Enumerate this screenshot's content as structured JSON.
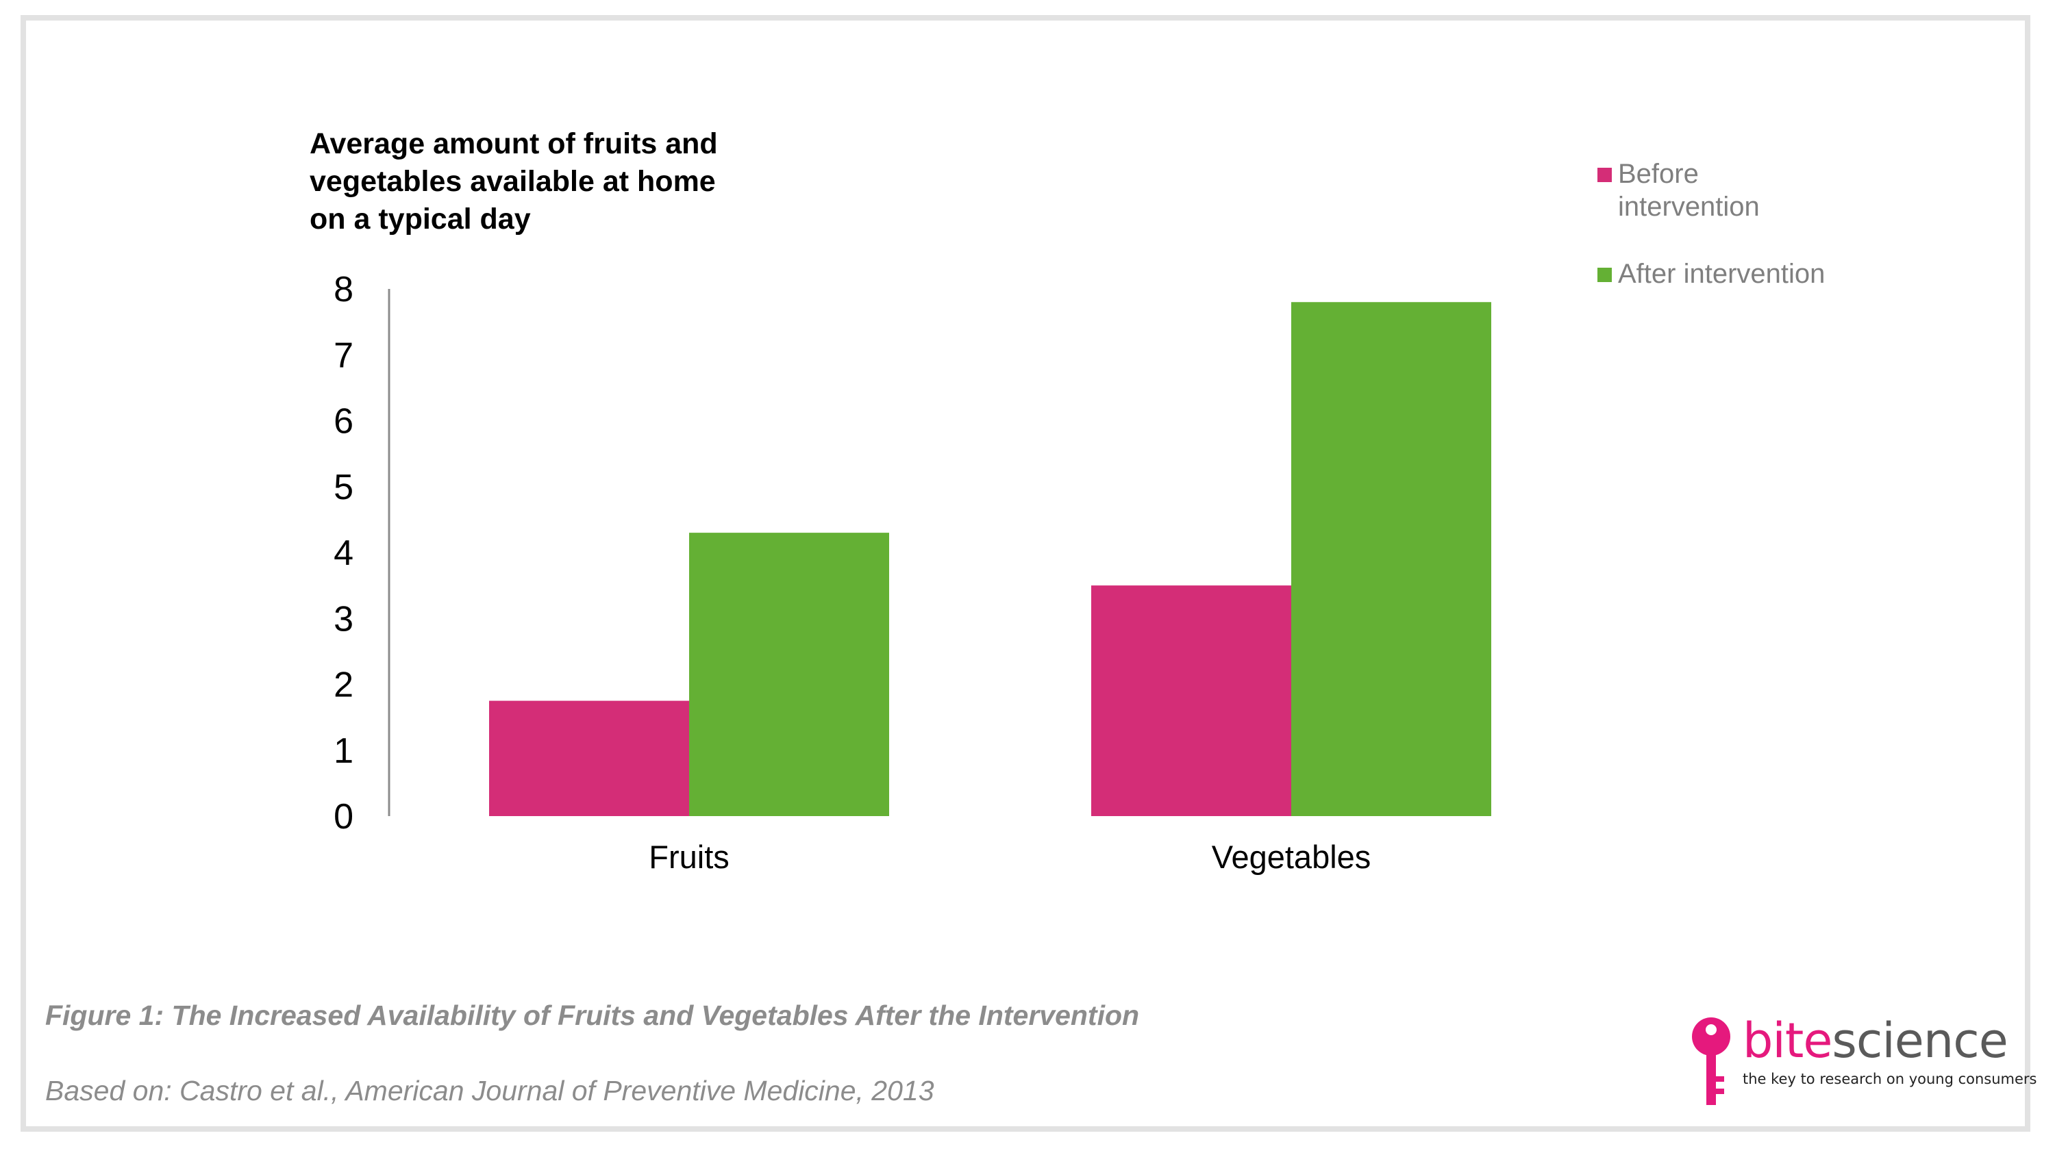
{
  "chart_data": {
    "type": "bar",
    "ylabel": "Average amount of fruits and vegetables available at home on a typical day",
    "categories": [
      "Fruits",
      "Vegetables"
    ],
    "series": [
      {
        "name": "Before intervention",
        "values": [
          1.75,
          3.5
        ],
        "color": "#d42d77"
      },
      {
        "name": "After intervention",
        "values": [
          4.3,
          7.8
        ],
        "color": "#64b034"
      }
    ],
    "ylim": [
      0,
      8
    ],
    "yticks": [
      "0",
      "1",
      "2",
      "3",
      "4",
      "5",
      "6",
      "7",
      "8"
    ],
    "grid": false,
    "legend_position": "top-right"
  },
  "caption": "Figure 1: The Increased Availability of Fruits and Vegetables After the Intervention",
  "source": "Based on: Castro et al., American Journal of Preventive Medicine, 2013",
  "logo": {
    "word_part1": "bite",
    "word_part2": "science",
    "tagline": "the key to research on young consumers",
    "icon": "key-icon"
  },
  "colors": {
    "frame_border": "#e2e2e2",
    "logo_pink": "#e5197d",
    "caption_gray": "#8c8c8c"
  }
}
